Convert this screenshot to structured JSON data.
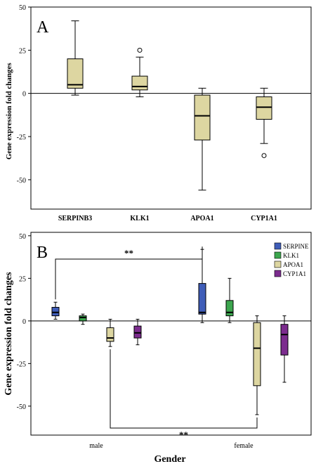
{
  "colors": {
    "tan": "#ddd6a1",
    "blue": "#3f5db8",
    "green": "#3ca64e",
    "purple": "#7c2c8e",
    "line": "#000000"
  },
  "chart_data": [
    {
      "type": "box",
      "panel_label": "A",
      "title": "",
      "xlabel": "",
      "ylabel": "Gene expression fold changes",
      "ylim": [
        -67,
        50
      ],
      "yticks": [
        -50,
        -25,
        0,
        25,
        50
      ],
      "ytick_labels": [
        "-50",
        "-25",
        "0",
        "25",
        "50"
      ],
      "reference_line": 0,
      "categories": [
        "SERPINB3",
        "KLK1",
        "APOA1",
        "CYP1A1"
      ],
      "boxes": [
        {
          "category": "SERPINB3",
          "min": -1,
          "q1": 3,
          "median": 5,
          "q3": 20,
          "max": 42,
          "outliers": []
        },
        {
          "category": "KLK1",
          "min": -2,
          "q1": 2,
          "median": 4,
          "q3": 10,
          "max": 21,
          "outliers": [
            25
          ]
        },
        {
          "category": "APOA1",
          "min": -56,
          "q1": -27,
          "median": -13,
          "q3": -1,
          "max": 3,
          "outliers": []
        },
        {
          "category": "CYP1A1",
          "min": -29,
          "q1": -15,
          "median": -8,
          "q3": -2,
          "max": 3,
          "outliers": [
            -36
          ]
        }
      ]
    },
    {
      "type": "box",
      "panel_label": "B",
      "title": "",
      "xlabel": "Gender",
      "ylabel": "Gene expression fold changes",
      "ylim": [
        -67,
        52
      ],
      "yticks": [
        -50,
        -25,
        0,
        25,
        50
      ],
      "ytick_labels": [
        "-50",
        "-25",
        "0",
        "25",
        "50"
      ],
      "reference_line": 0,
      "categories": [
        "male",
        "female"
      ],
      "series": [
        {
          "name": "SERPINE",
          "color": "#3f5db8",
          "boxes": [
            {
              "category": "male",
              "min": 1,
              "q1": 3,
              "median": 5,
              "q3": 8,
              "max": 11
            },
            {
              "category": "female",
              "min": -1,
              "q1": 4,
              "median": 5,
              "q3": 22,
              "max": 42
            }
          ]
        },
        {
          "name": "KLK1",
          "color": "#3ca64e",
          "boxes": [
            {
              "category": "male",
              "min": -2,
              "q1": 0,
              "median": 2,
              "q3": 3,
              "max": 4
            },
            {
              "category": "female",
              "min": -1,
              "q1": 3,
              "median": 5,
              "q3": 12,
              "max": 25
            }
          ]
        },
        {
          "name": "APOA1",
          "color": "#ddd6a1",
          "boxes": [
            {
              "category": "male",
              "min": -15,
              "q1": -12,
              "median": -10,
              "q3": -4,
              "max": 1
            },
            {
              "category": "female",
              "min": -55,
              "q1": -38,
              "median": -16,
              "q3": -1,
              "max": 3
            }
          ]
        },
        {
          "name": "CYP1A1",
          "color": "#7c2c8e",
          "boxes": [
            {
              "category": "male",
              "min": -14,
              "q1": -10,
              "median": -7,
              "q3": -3,
              "max": 1
            },
            {
              "category": "female",
              "min": -36,
              "q1": -20,
              "median": -8,
              "q3": -2,
              "max": 3
            }
          ]
        }
      ],
      "annotations": [
        {
          "text": "**",
          "from": {
            "series": "SERPINE",
            "category": "male"
          },
          "to": {
            "series": "SERPINE",
            "category": "female"
          },
          "position": "above"
        },
        {
          "text": "**",
          "from": {
            "series": "APOA1",
            "category": "male"
          },
          "to": {
            "series": "APOA1",
            "category": "female"
          },
          "position": "below"
        }
      ],
      "legend_position": "top-right"
    }
  ]
}
